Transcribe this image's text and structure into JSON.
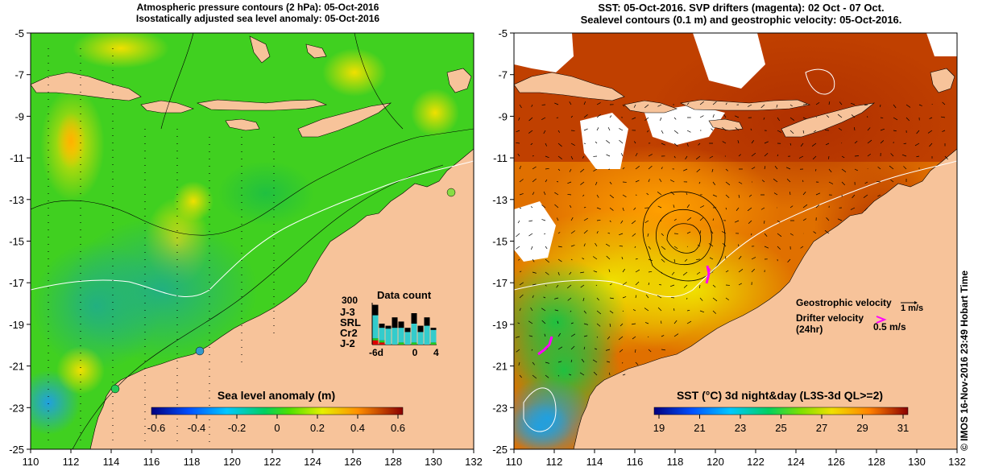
{
  "left_panel": {
    "title_line1": "Atmospheric pressure contours (2 hPa): 05-Oct-2016",
    "title_line2": "Isostatically adjusted sea level anomaly: 05-Oct-2016",
    "colorbar_title": "Sea level anomaly (m)",
    "colorbar_ticks": [
      "-0.6",
      "-0.4",
      "-0.2",
      "0",
      "0.2",
      "0.4",
      "0.6"
    ],
    "histogram": {
      "title": "Data count",
      "ymax_label": "300",
      "x_labels": [
        "-6d",
        "0",
        "4"
      ],
      "series": [
        {
          "name": "J-3",
          "color": "#000000"
        },
        {
          "name": "SRL",
          "color": "#33cccc"
        },
        {
          "name": "Cr2",
          "color": "#22cc22"
        },
        {
          "name": "J-2",
          "color": "#dd0000"
        }
      ],
      "bars": [
        {
          "day": -6,
          "J-3": 0.95,
          "SRL": 0.55,
          "Cr2": 0.05,
          "J-2": 0.1
        },
        {
          "day": -5,
          "J-3": 0.5,
          "SRL": 0.3,
          "Cr2": 0.05,
          "J-2": 0.05
        },
        {
          "day": -4,
          "J-3": 0.45,
          "SRL": 0.38,
          "Cr2": 0.0,
          "J-2": 0.0
        },
        {
          "day": -3,
          "J-3": 0.65,
          "SRL": 0.4,
          "Cr2": 0.0,
          "J-2": 0.0
        },
        {
          "day": -2,
          "J-3": 0.55,
          "SRL": 0.35,
          "Cr2": 0.05,
          "J-2": 0.0
        },
        {
          "day": -1,
          "J-3": 0.4,
          "SRL": 0.3,
          "Cr2": 0.0,
          "J-2": 0.0
        },
        {
          "day": 0,
          "J-3": 0.75,
          "SRL": 0.45,
          "Cr2": 0.05,
          "J-2": 0.0
        },
        {
          "day": 1,
          "J-3": 0.45,
          "SRL": 0.3,
          "Cr2": 0.0,
          "J-2": 0.0
        },
        {
          "day": 2,
          "J-3": 0.65,
          "SRL": 0.45,
          "Cr2": 0.0,
          "J-2": 0.0
        },
        {
          "day": 3,
          "J-3": 0.4,
          "SRL": 0.3,
          "Cr2": 0.05,
          "J-2": 0.0
        }
      ]
    }
  },
  "right_panel": {
    "title_line1": "SST: 05-Oct-2016. SVP drifters (magenta): 02 Oct - 07 Oct.",
    "title_line2": "Sealevel contours (0.1 m) and geostrophic velocity: 05-Oct-2016.",
    "colorbar_title": "SST (°C) 3d night&day (L3S-3d QL>=2)",
    "colorbar_ticks": [
      "19",
      "21",
      "23",
      "25",
      "27",
      "29",
      "31"
    ],
    "geostrophic_label": "Geostrophic velocity",
    "geostrophic_scale": "1 m/s",
    "drifter_label_line1": "Drifter velocity",
    "drifter_label_line2": "(24hr)",
    "drifter_scale": "0.5 m/s"
  },
  "axes": {
    "lon_labels": [
      "110",
      "112",
      "114",
      "116",
      "118",
      "120",
      "122",
      "124",
      "126",
      "128",
      "130",
      "132"
    ],
    "lat_labels": [
      "-5",
      "-7",
      "-9",
      "-11",
      "-13",
      "-15",
      "-17",
      "-19",
      "-21",
      "-23",
      "-25"
    ]
  },
  "watermark": "© IMOS 16-Nov-2016 23:49 Hobart Time",
  "colors": {
    "land": "#f7c39a",
    "no_data": "#ffffff",
    "drifter": "#ff00ff"
  }
}
